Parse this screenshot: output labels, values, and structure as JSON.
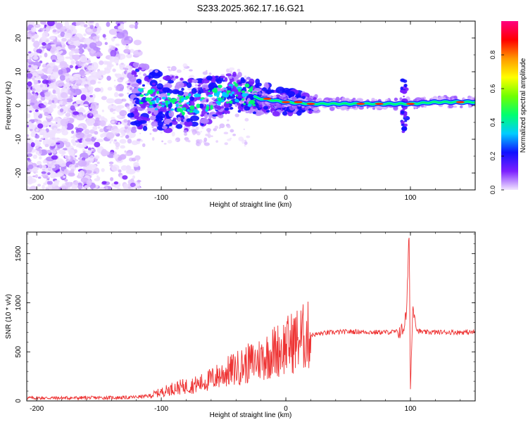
{
  "title": "S233.2025.362.17.16.G21",
  "chart_data": [
    {
      "type": "heatmap",
      "name": "spectrogram",
      "xlabel": "Height of straight line (km)",
      "ylabel": "Frequency (Hz)",
      "xlim": [
        -208,
        152
      ],
      "ylim": [
        -25,
        25
      ],
      "xticks": [
        -200,
        -100,
        0,
        100
      ],
      "yticks": [
        -20,
        -10,
        0,
        10,
        20
      ],
      "colorbar": {
        "label": "Normalized spectral amplitude",
        "range": [
          0,
          1
        ],
        "ticks": [
          0.0,
          0.2,
          0.4,
          0.6,
          0.8
        ],
        "colors": [
          "#f2e6ff",
          "#7c20ff",
          "#1010ff",
          "#00ccff",
          "#00ff70",
          "#70ff00",
          "#ffff00",
          "#ff9900",
          "#ff0000",
          "#ff0080"
        ]
      },
      "ridge": {
        "x": [
          -120,
          -100,
          -80,
          -60,
          -40,
          -20,
          0,
          20,
          40,
          60,
          80,
          100,
          120,
          150
        ],
        "frequency": [
          3,
          1,
          0,
          2,
          4,
          2,
          1,
          0.5,
          0.5,
          0.5,
          0.5,
          0.5,
          1,
          1
        ]
      }
    },
    {
      "type": "line",
      "name": "snr",
      "xlabel": "Height of straight line (km)",
      "ylabel": "SNR (10 * v/v)",
      "xlim": [
        -208,
        152
      ],
      "ylim": [
        0,
        1720
      ],
      "xticks": [
        -200,
        -100,
        0,
        100
      ],
      "yticks": [
        0,
        500,
        1000,
        1500
      ],
      "series": [
        {
          "name": "SNR",
          "color": "#ee3333",
          "x": [
            -208,
            -180,
            -150,
            -125,
            -110,
            -100,
            -90,
            -80,
            -70,
            -60,
            -50,
            -40,
            -30,
            -20,
            -10,
            0,
            10,
            20,
            30,
            40,
            50,
            60,
            70,
            80,
            90,
            94,
            97,
            98,
            99,
            100,
            102,
            105,
            110,
            120,
            130,
            140,
            152
          ],
          "y": [
            30,
            30,
            32,
            35,
            50,
            90,
            130,
            150,
            170,
            220,
            280,
            330,
            380,
            430,
            500,
            560,
            630,
            670,
            690,
            700,
            705,
            705,
            700,
            700,
            705,
            720,
            900,
            1350,
            1720,
            100,
            1000,
            720,
            700,
            700,
            700,
            700,
            700
          ]
        }
      ]
    }
  ]
}
